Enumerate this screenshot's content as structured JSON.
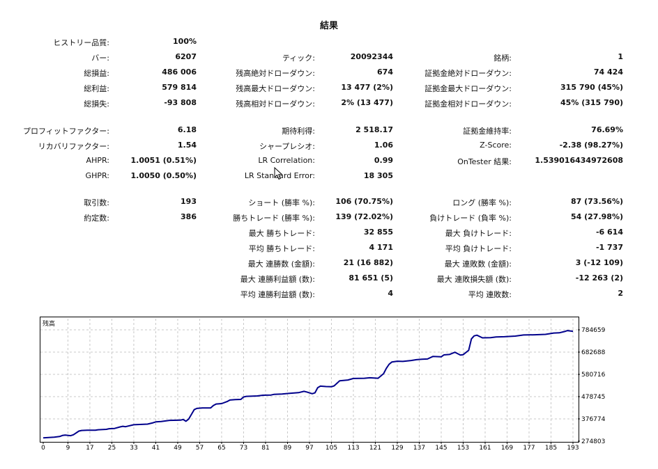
{
  "report": {
    "title": "結果",
    "history_quality": {
      "label": "ヒストリー品質:",
      "value": "100%"
    },
    "col1": [
      {
        "label": "バー:",
        "value": "6207"
      },
      {
        "label": "総損益:",
        "value": "486 006"
      },
      {
        "label": "総利益:",
        "value": "579 814"
      },
      {
        "label": "総損失:",
        "value": "-93 808"
      },
      {
        "label": "プロフィットファクター:",
        "value": "6.18"
      },
      {
        "label": "リカバリファクター:",
        "value": "1.54"
      },
      {
        "label": "AHPR:",
        "value": "1.0051 (0.51%)"
      },
      {
        "label": "GHPR:",
        "value": "1.0050 (0.50%)"
      },
      {
        "label": "取引数:",
        "value": "193"
      },
      {
        "label": "約定数:",
        "value": "386"
      }
    ],
    "col2": [
      {
        "label": "ティック:",
        "value": "20092344"
      },
      {
        "label": "残高絶対ドローダウン:",
        "value": "674"
      },
      {
        "label": "残高最大ドローダウン:",
        "value": "13 477 (2%)"
      },
      {
        "label": "残高相対ドローダウン:",
        "value": "2% (13 477)"
      },
      {
        "label": "期待利得:",
        "value": "2 518.17"
      },
      {
        "label": "シャープレシオ:",
        "value": "1.06"
      },
      {
        "label": "LR Correlation:",
        "value": "0.99"
      },
      {
        "label": "LR Standard Error:",
        "value": "18 305"
      },
      {
        "label": "ショート (勝率 %):",
        "value": "106 (70.75%)"
      },
      {
        "label": "勝ちトレード (勝率 %):",
        "value": "139 (72.02%)"
      },
      {
        "label": "最大 勝ちトレード:",
        "value": "32 855"
      },
      {
        "label": "平均 勝ちトレード:",
        "value": "4 171"
      },
      {
        "label": "最大 連勝数 (金額):",
        "value": "21 (16 882)"
      },
      {
        "label": "最大 連勝利益額 (数):",
        "value": "81 651 (5)"
      },
      {
        "label": "平均 連勝利益額 (数):",
        "value": "4"
      }
    ],
    "col3": [
      {
        "label": "銘柄:",
        "value": "1"
      },
      {
        "label": "証拠金絶対ドローダウン:",
        "value": "74 424"
      },
      {
        "label": "証拠金最大ドローダウン:",
        "value": "315 790 (45%)"
      },
      {
        "label": "証拠金相対ドローダウン:",
        "value": "45% (315 790)"
      },
      {
        "label": "証拠金維持率:",
        "value": "76.69%"
      },
      {
        "label": "Z-Score:",
        "value": "-2.38 (98.27%)"
      },
      {
        "label": "OnTester 結果:",
        "value": "1.539016434972608"
      },
      {
        "label": "ロング (勝率 %):",
        "value": "87 (73.56%)"
      },
      {
        "label": "負けトレード (負率 %):",
        "value": "54 (27.98%)"
      },
      {
        "label": "最大 負けトレード:",
        "value": "-6 614"
      },
      {
        "label": "平均 負けトレード:",
        "value": "-1 737"
      },
      {
        "label": "最大 連敗数 (金額):",
        "value": "3 (-12 109)"
      },
      {
        "label": "最大 連敗損失額 (数):",
        "value": "-12 263 (2)"
      },
      {
        "label": "平均 連敗数:",
        "value": "2"
      }
    ]
  },
  "chart_data": {
    "type": "line",
    "series_label": "残高",
    "line_color": "#00008b",
    "grid": true,
    "x_ticks": [
      "0",
      "9",
      "17",
      "25",
      "33",
      "41",
      "49",
      "57",
      "65",
      "73",
      "81",
      "89",
      "97",
      "105",
      "113",
      "121",
      "129",
      "137",
      "145",
      "153",
      "161",
      "169",
      "177",
      "185",
      "193"
    ],
    "y_ticks": [
      "784659",
      "682688",
      "580716",
      "478745",
      "376774",
      "274803"
    ],
    "ylim": [
      274803,
      784659
    ],
    "xlim": [
      0,
      193
    ],
    "points": [
      [
        0,
        290000
      ],
      [
        4,
        293000
      ],
      [
        6,
        296000
      ],
      [
        7,
        301000
      ],
      [
        8,
        303000
      ],
      [
        10,
        300000
      ],
      [
        11,
        304000
      ],
      [
        13,
        321000
      ],
      [
        14,
        324000
      ],
      [
        16,
        325000
      ],
      [
        19,
        325000
      ],
      [
        20,
        327000
      ],
      [
        23,
        329000
      ],
      [
        24,
        332000
      ],
      [
        26,
        333000
      ],
      [
        28,
        340000
      ],
      [
        29,
        343000
      ],
      [
        30,
        341000
      ],
      [
        33,
        350000
      ],
      [
        38,
        353000
      ],
      [
        40,
        359000
      ],
      [
        41,
        363000
      ],
      [
        43,
        365000
      ],
      [
        46,
        370000
      ],
      [
        50,
        371000
      ],
      [
        51,
        374000
      ],
      [
        52,
        366000
      ],
      [
        53,
        376000
      ],
      [
        55,
        419000
      ],
      [
        56,
        425000
      ],
      [
        58,
        427000
      ],
      [
        61,
        427000
      ],
      [
        62,
        438000
      ],
      [
        63,
        445000
      ],
      [
        65,
        447000
      ],
      [
        67,
        456000
      ],
      [
        68,
        463000
      ],
      [
        70,
        465000
      ],
      [
        72,
        466000
      ],
      [
        73,
        477000
      ],
      [
        74,
        480000
      ],
      [
        78,
        482000
      ],
      [
        80,
        485000
      ],
      [
        83,
        486000
      ],
      [
        84,
        489000
      ],
      [
        87,
        491000
      ],
      [
        89,
        493000
      ],
      [
        91,
        495000
      ],
      [
        93,
        497000
      ],
      [
        95,
        503000
      ],
      [
        96,
        500000
      ],
      [
        98,
        492000
      ],
      [
        99,
        496000
      ],
      [
        100,
        520000
      ],
      [
        101,
        527000
      ],
      [
        103,
        525000
      ],
      [
        105,
        524000
      ],
      [
        106,
        528000
      ],
      [
        108,
        551000
      ],
      [
        111,
        555000
      ],
      [
        113,
        562000
      ],
      [
        117,
        563000
      ],
      [
        119,
        565000
      ],
      [
        122,
        563000
      ],
      [
        124,
        584000
      ],
      [
        125,
        608000
      ],
      [
        126,
        627000
      ],
      [
        127,
        637000
      ],
      [
        129,
        641000
      ],
      [
        131,
        640000
      ],
      [
        134,
        644000
      ],
      [
        136,
        648000
      ],
      [
        138,
        650000
      ],
      [
        140,
        651000
      ],
      [
        142,
        663000
      ],
      [
        145,
        661000
      ],
      [
        146,
        670000
      ],
      [
        148,
        672000
      ],
      [
        150,
        682000
      ],
      [
        152,
        669000
      ],
      [
        153,
        671000
      ],
      [
        155,
        691000
      ],
      [
        156,
        743000
      ],
      [
        157,
        757000
      ],
      [
        158,
        760000
      ],
      [
        160,
        748000
      ],
      [
        163,
        749000
      ],
      [
        165,
        752000
      ],
      [
        168,
        753000
      ],
      [
        172,
        756000
      ],
      [
        175,
        761000
      ],
      [
        179,
        762000
      ],
      [
        183,
        764000
      ],
      [
        186,
        770000
      ],
      [
        188,
        771000
      ],
      [
        190,
        777000
      ],
      [
        191,
        781000
      ],
      [
        193,
        778000
      ]
    ]
  }
}
